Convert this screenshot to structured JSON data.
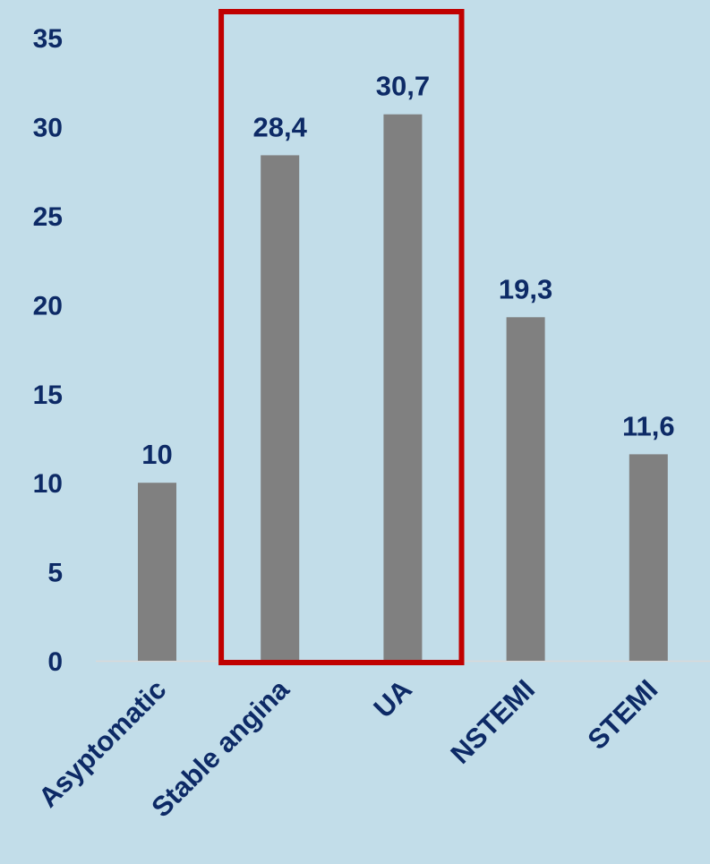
{
  "chart_data": {
    "type": "bar",
    "categories": [
      "Asyptomatic",
      "Stable angina",
      "UA",
      "NSTEMI",
      "STEMI"
    ],
    "values": [
      10,
      28.4,
      30.7,
      19.3,
      11.6
    ],
    "data_labels": [
      "10",
      "28,4",
      "30,7",
      "19,3",
      "11,6"
    ],
    "yticks": [
      0,
      5,
      10,
      15,
      20,
      25,
      30,
      35
    ],
    "ylim": [
      0,
      35
    ],
    "title": "",
    "xlabel": "",
    "ylabel": "",
    "grid": false,
    "legend": "none",
    "highlight": {
      "from_category": "Stable angina",
      "to_category": "UA"
    },
    "colors": {
      "background": "#c2dde9",
      "bar": "#808080",
      "text": "#0d2a66",
      "highlight_box": "#c00000",
      "axis_line": "#d9d9d9"
    }
  }
}
